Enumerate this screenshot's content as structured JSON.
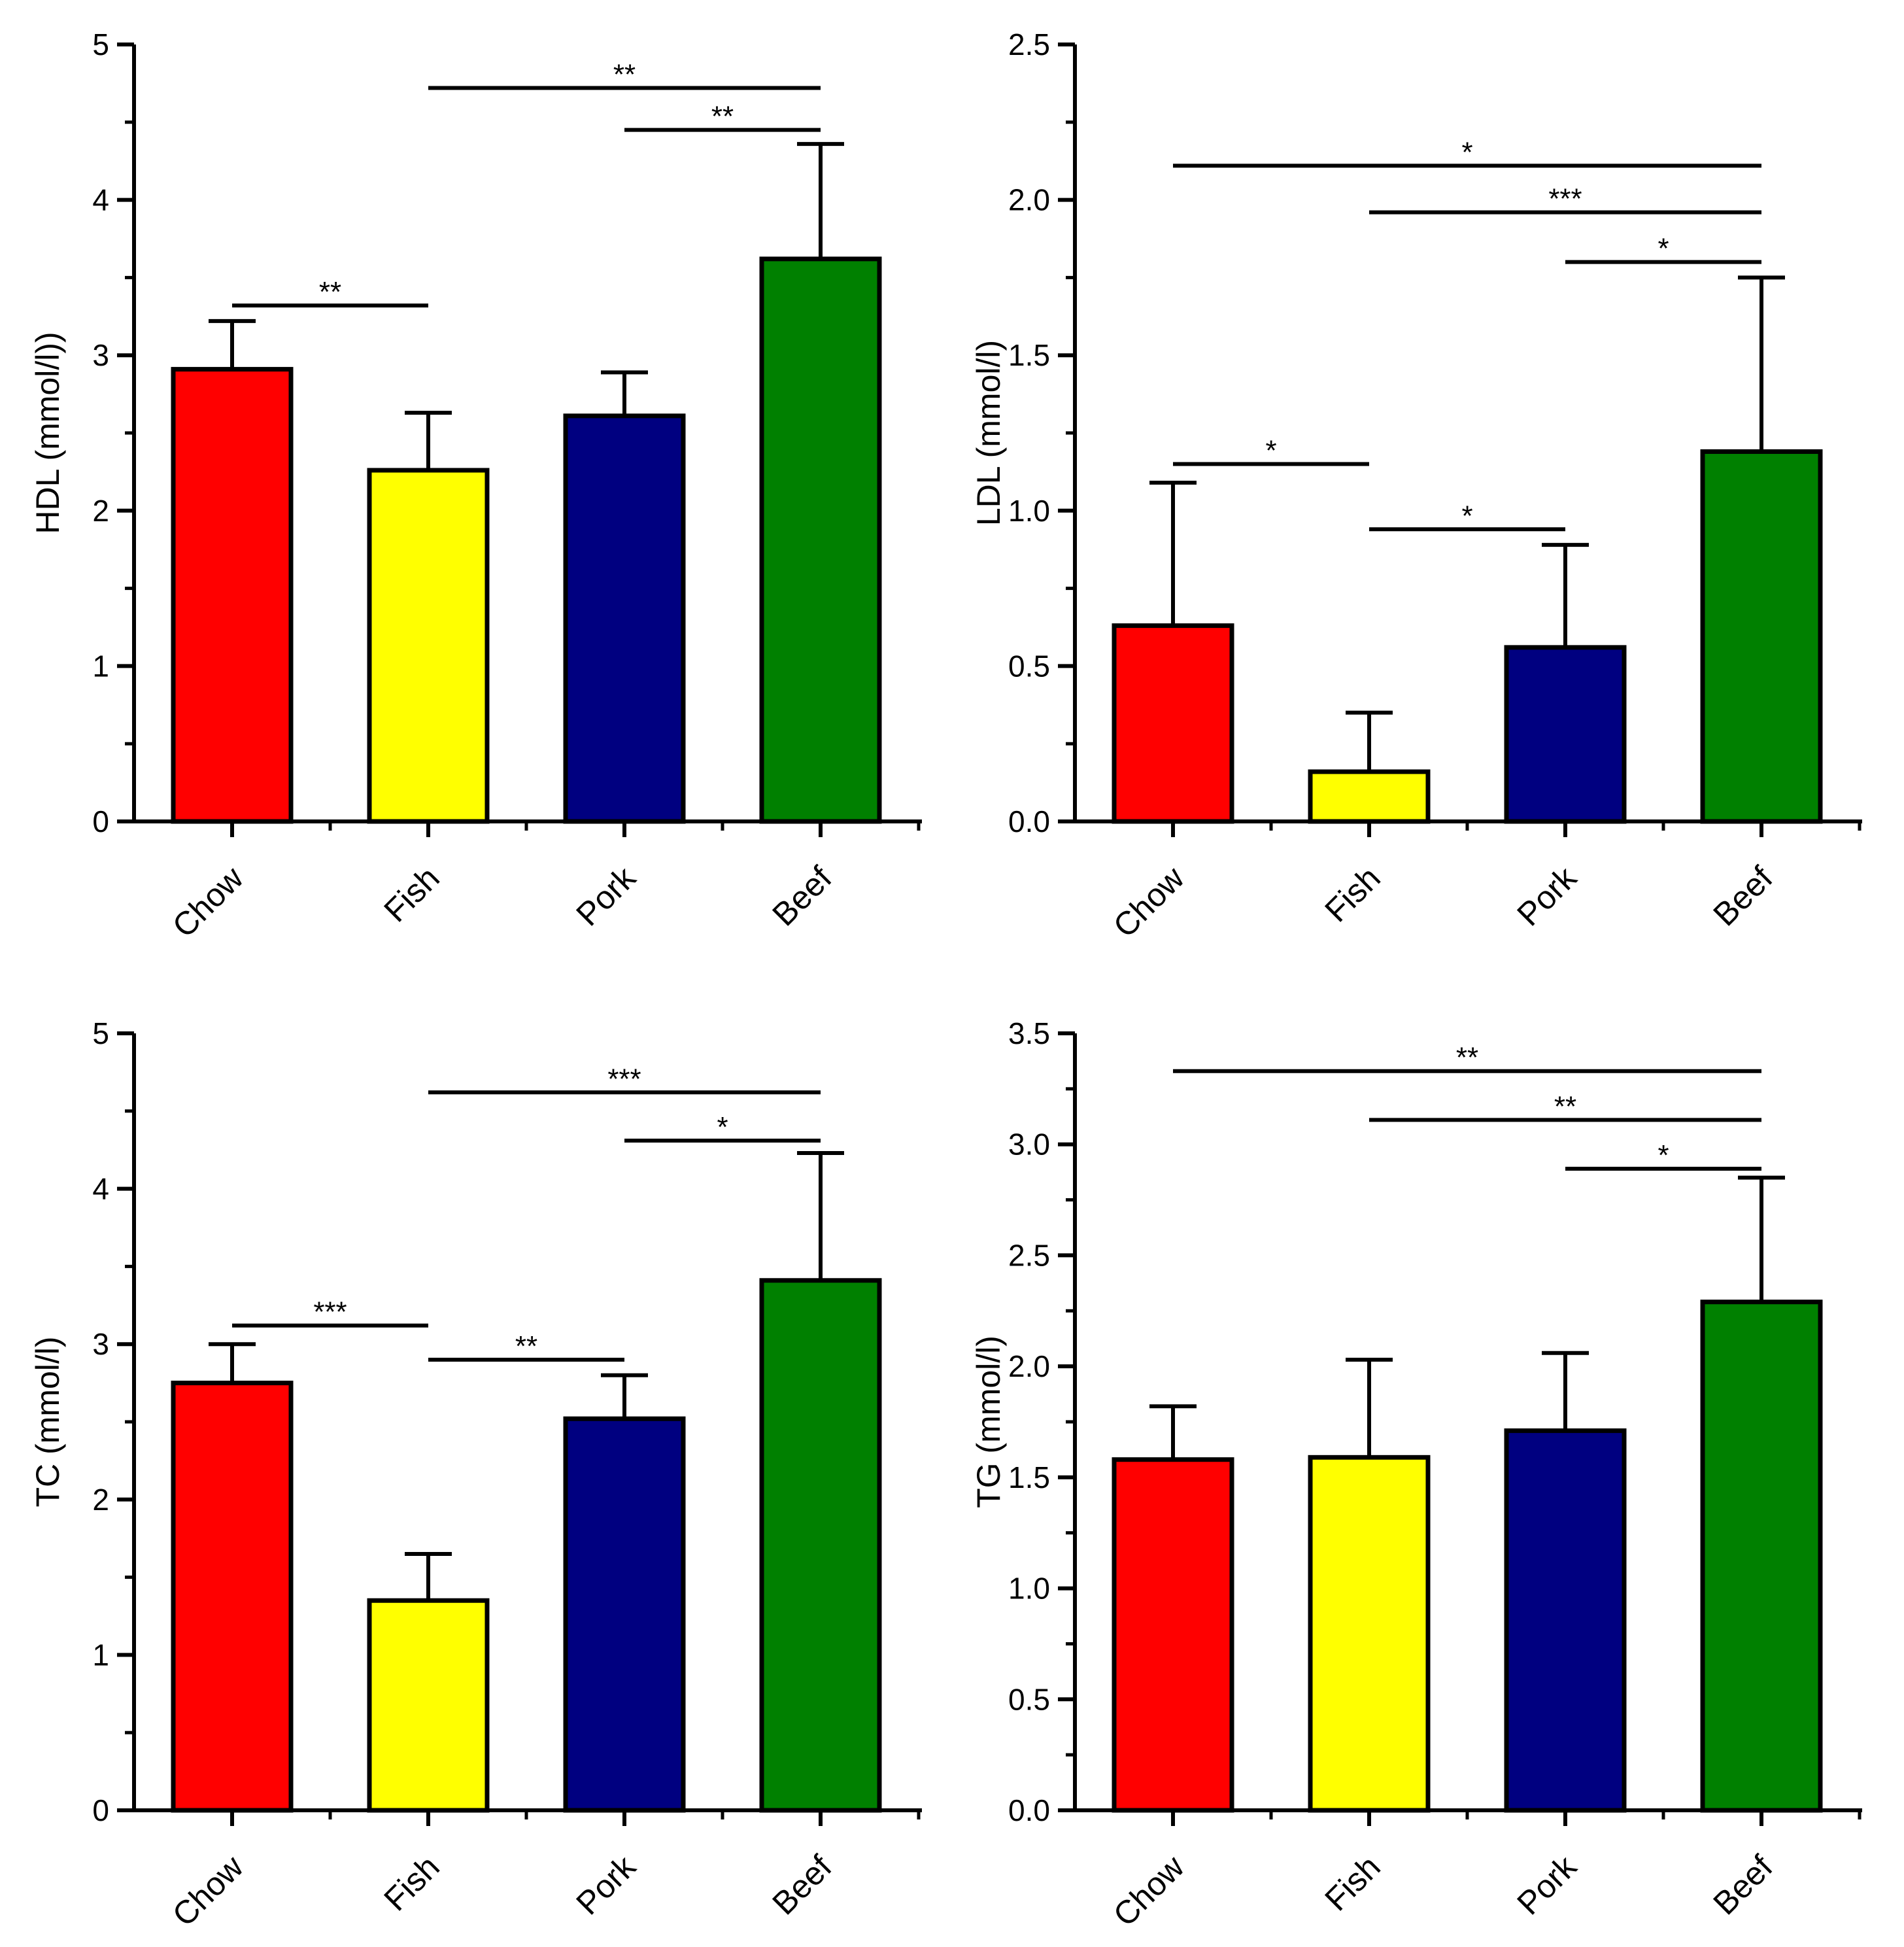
{
  "colors": {
    "Chow": "#ff0000",
    "Fish": "#ffff00",
    "Pork": "#000080",
    "Beef": "#008000",
    "stroke": "#000000"
  },
  "chart_data": [
    {
      "type": "bar",
      "categories": [
        "Chow",
        "Fish",
        "Pork",
        "Beef"
      ],
      "values": [
        2.91,
        2.26,
        2.61,
        3.62
      ],
      "errors": [
        0.31,
        0.37,
        0.28,
        0.74
      ],
      "ylabel": "HDL (mmol/l))",
      "ylim": [
        0,
        5
      ],
      "yticks": [
        0,
        1,
        2,
        3,
        4,
        5
      ],
      "ytick_labels": [
        "0",
        "1",
        "2",
        "3",
        "4",
        "5"
      ],
      "yminor": 0.5,
      "grid": false,
      "significance": [
        {
          "from": "Chow",
          "to": "Fish",
          "y": 3.32,
          "label": "**"
        },
        {
          "from": "Fish",
          "to": "Beef",
          "y": 4.72,
          "label": "**"
        },
        {
          "from": "Pork",
          "to": "Beef",
          "y": 4.45,
          "label": "**"
        }
      ]
    },
    {
      "type": "bar",
      "categories": [
        "Chow",
        "Fish",
        "Pork",
        "Beef"
      ],
      "values": [
        0.63,
        0.16,
        0.56,
        1.19
      ],
      "errors": [
        0.46,
        0.19,
        0.33,
        0.56
      ],
      "ylabel": "LDL (mmol/l)",
      "ylim": [
        0,
        2.5
      ],
      "yticks": [
        0,
        0.5,
        1.0,
        1.5,
        2.0,
        2.5
      ],
      "ytick_labels": [
        "0.0",
        "0.5",
        "1.0",
        "1.5",
        "2.0",
        "2.5"
      ],
      "yminor": 0.25,
      "grid": false,
      "significance": [
        {
          "from": "Chow",
          "to": "Beef",
          "y": 2.11,
          "label": "*"
        },
        {
          "from": "Fish",
          "to": "Beef",
          "y": 1.96,
          "label": "***"
        },
        {
          "from": "Pork",
          "to": "Beef",
          "y": 1.8,
          "label": "*"
        },
        {
          "from": "Chow",
          "to": "Fish",
          "y": 1.15,
          "label": "*"
        },
        {
          "from": "Fish",
          "to": "Pork",
          "y": 0.94,
          "label": "*"
        }
      ]
    },
    {
      "type": "bar",
      "categories": [
        "Chow",
        "Fish",
        "Pork",
        "Beef"
      ],
      "values": [
        2.75,
        1.35,
        2.52,
        3.41
      ],
      "errors": [
        0.25,
        0.3,
        0.28,
        0.82
      ],
      "ylabel": "TC (mmol/l)",
      "ylim": [
        0,
        5
      ],
      "yticks": [
        0,
        1,
        2,
        3,
        4,
        5
      ],
      "ytick_labels": [
        "0",
        "1",
        "2",
        "3",
        "4",
        "5"
      ],
      "yminor": 0.5,
      "grid": false,
      "significance": [
        {
          "from": "Fish",
          "to": "Beef",
          "y": 4.62,
          "label": "***"
        },
        {
          "from": "Pork",
          "to": "Beef",
          "y": 4.31,
          "label": "*"
        },
        {
          "from": "Chow",
          "to": "Fish",
          "y": 3.12,
          "label": "***"
        },
        {
          "from": "Fish",
          "to": "Pork",
          "y": 2.9,
          "label": "**"
        }
      ]
    },
    {
      "type": "bar",
      "categories": [
        "Chow",
        "Fish",
        "Pork",
        "Beef"
      ],
      "values": [
        1.58,
        1.59,
        1.71,
        2.29
      ],
      "errors": [
        0.24,
        0.44,
        0.35,
        0.56
      ],
      "ylabel": "TG (mmol/l)",
      "ylim": [
        0,
        3.5
      ],
      "yticks": [
        0,
        0.5,
        1.0,
        1.5,
        2.0,
        2.5,
        3.0,
        3.5
      ],
      "ytick_labels": [
        "0.0",
        "0.5",
        "1.0",
        "1.5",
        "2.0",
        "2.5",
        "3.0",
        "3.5"
      ],
      "yminor": 0.25,
      "grid": false,
      "significance": [
        {
          "from": "Chow",
          "to": "Beef",
          "y": 3.33,
          "label": "**"
        },
        {
          "from": "Fish",
          "to": "Beef",
          "y": 3.11,
          "label": "**"
        },
        {
          "from": "Pork",
          "to": "Beef",
          "y": 2.89,
          "label": "*"
        }
      ]
    }
  ]
}
